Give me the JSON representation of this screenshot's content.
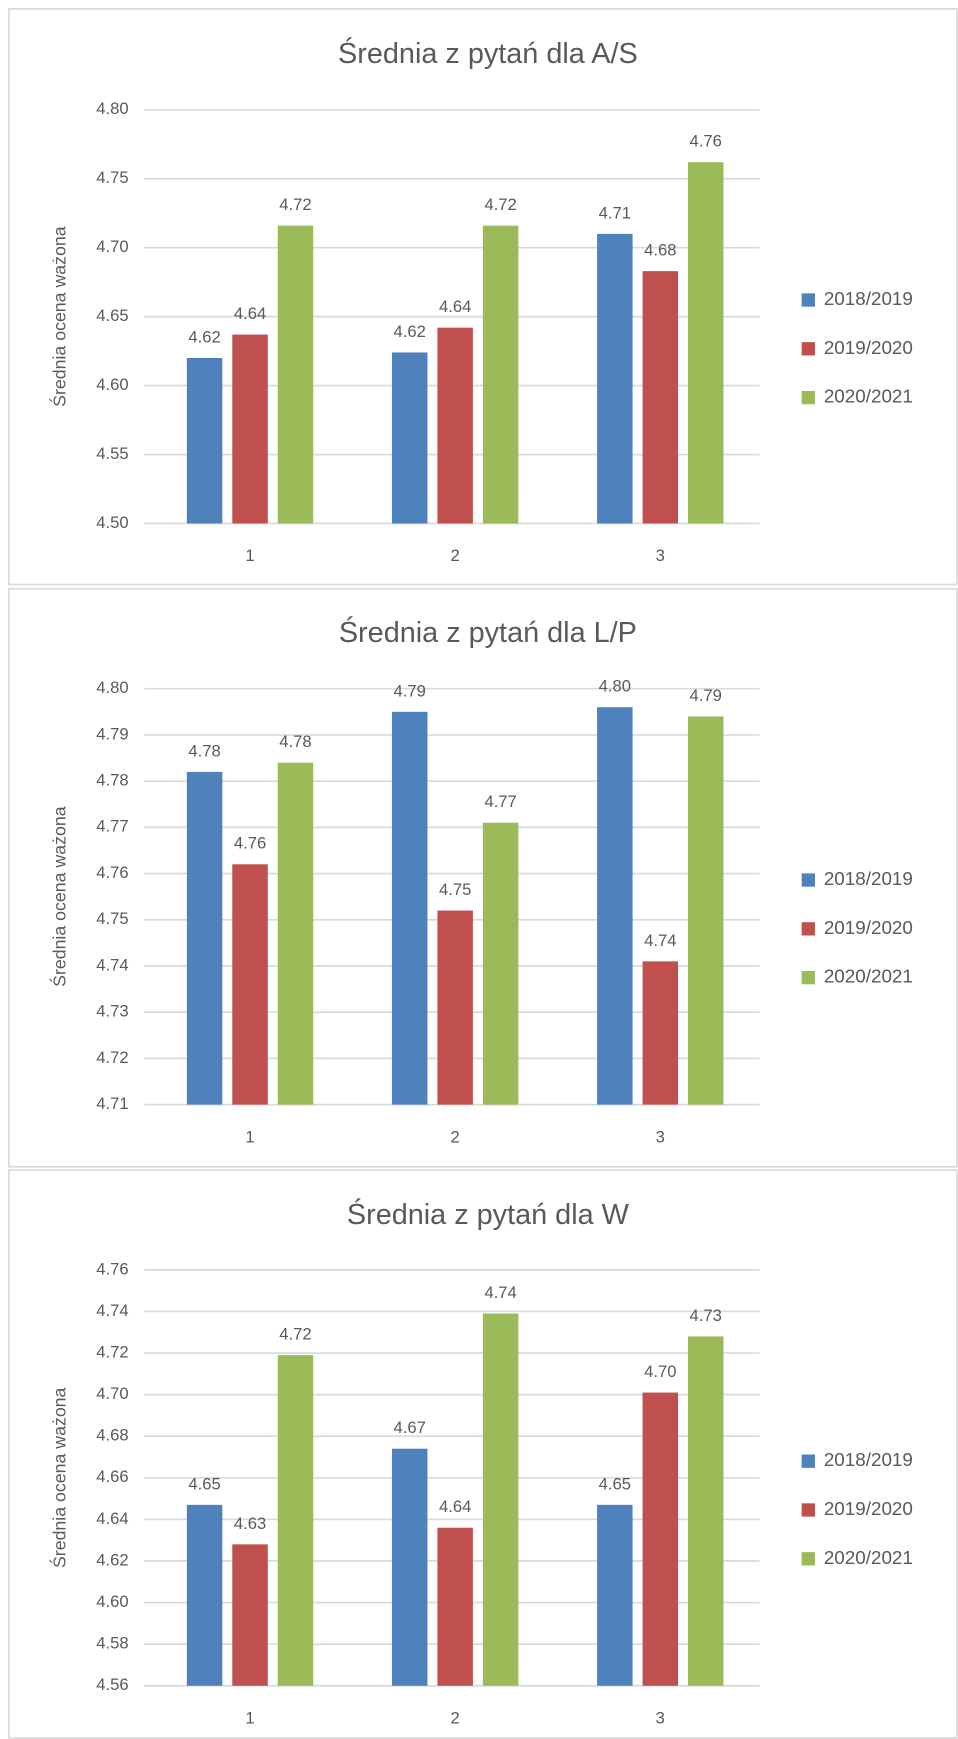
{
  "chart_data": [
    {
      "type": "bar",
      "title": "Średnia z pytań dla A/S",
      "y_label": "Średnia ocena ważona",
      "categories": [
        "1",
        "2",
        "3"
      ],
      "series": [
        {
          "name": "2018/2019",
          "color": "#4f81bd",
          "values": [
            4.62,
            4.624,
            4.71
          ],
          "value_labels": [
            "4.62",
            "4.62",
            "4.71"
          ]
        },
        {
          "name": "2019/2020",
          "color": "#c0504d",
          "values": [
            4.637,
            4.642,
            4.683
          ],
          "value_labels": [
            "4.64",
            "4.64",
            "4.68"
          ]
        },
        {
          "name": "2020/2021",
          "color": "#9bbb59",
          "values": [
            4.716,
            4.716,
            4.762
          ],
          "value_labels": [
            "4.72",
            "4.72",
            "4.76"
          ]
        }
      ],
      "ylim": [
        4.5,
        4.8
      ],
      "yticks": [
        {
          "value": 4.5,
          "label": "4.50"
        },
        {
          "value": 4.55,
          "label": "4.55"
        },
        {
          "value": 4.6,
          "label": "4.60"
        },
        {
          "value": 4.65,
          "label": "4.65"
        },
        {
          "value": 4.7,
          "label": "4.70"
        },
        {
          "value": 4.75,
          "label": "4.75"
        },
        {
          "value": 4.8,
          "label": "4.80"
        }
      ],
      "grid": true,
      "legend": "right"
    },
    {
      "type": "bar",
      "title": "Średnia z pytań dla L/P",
      "y_label": "Średnia ocena ważona",
      "categories": [
        "1",
        "2",
        "3"
      ],
      "series": [
        {
          "name": "2018/2019",
          "color": "#4f81bd",
          "values": [
            4.782,
            4.795,
            4.796
          ],
          "value_labels": [
            "4.78",
            "4.79",
            "4.80"
          ]
        },
        {
          "name": "2019/2020",
          "color": "#c0504d",
          "values": [
            4.762,
            4.752,
            4.741
          ],
          "value_labels": [
            "4.76",
            "4.75",
            "4.74"
          ]
        },
        {
          "name": "2020/2021",
          "color": "#9bbb59",
          "values": [
            4.784,
            4.771,
            4.794
          ],
          "value_labels": [
            "4.78",
            "4.77",
            "4.79"
          ]
        }
      ],
      "ylim": [
        4.71,
        4.8
      ],
      "yticks": [
        4.71,
        4.72,
        4.73,
        4.74,
        4.75,
        4.76,
        4.77,
        4.78,
        4.79,
        {
          "value": 4.8,
          "label": "4.80"
        }
      ],
      "grid": true,
      "legend": "right"
    },
    {
      "type": "bar",
      "title": "Średnia z pytań dla W",
      "y_label": "Średnia ocena ważona",
      "categories": [
        "1",
        "2",
        "3"
      ],
      "series": [
        {
          "name": "2018/2019",
          "color": "#4f81bd",
          "values": [
            4.647,
            4.674,
            4.647
          ],
          "value_labels": [
            "4.65",
            "4.67",
            "4.65"
          ]
        },
        {
          "name": "2019/2020",
          "color": "#c0504d",
          "values": [
            4.628,
            4.636,
            4.701
          ],
          "value_labels": [
            "4.63",
            "4.64",
            "4.70"
          ]
        },
        {
          "name": "2020/2021",
          "color": "#9bbb59",
          "values": [
            4.719,
            4.739,
            4.728
          ],
          "value_labels": [
            "4.72",
            "4.74",
            "4.73"
          ]
        }
      ],
      "ylim": [
        4.56,
        4.76
      ],
      "yticks": [
        4.56,
        4.58,
        {
          "value": 4.6,
          "label": "4.60"
        },
        4.62,
        4.64,
        4.66,
        4.68,
        {
          "value": 4.7,
          "label": "4.70"
        },
        4.72,
        4.74,
        4.76
      ],
      "grid": true,
      "legend": "right"
    }
  ]
}
